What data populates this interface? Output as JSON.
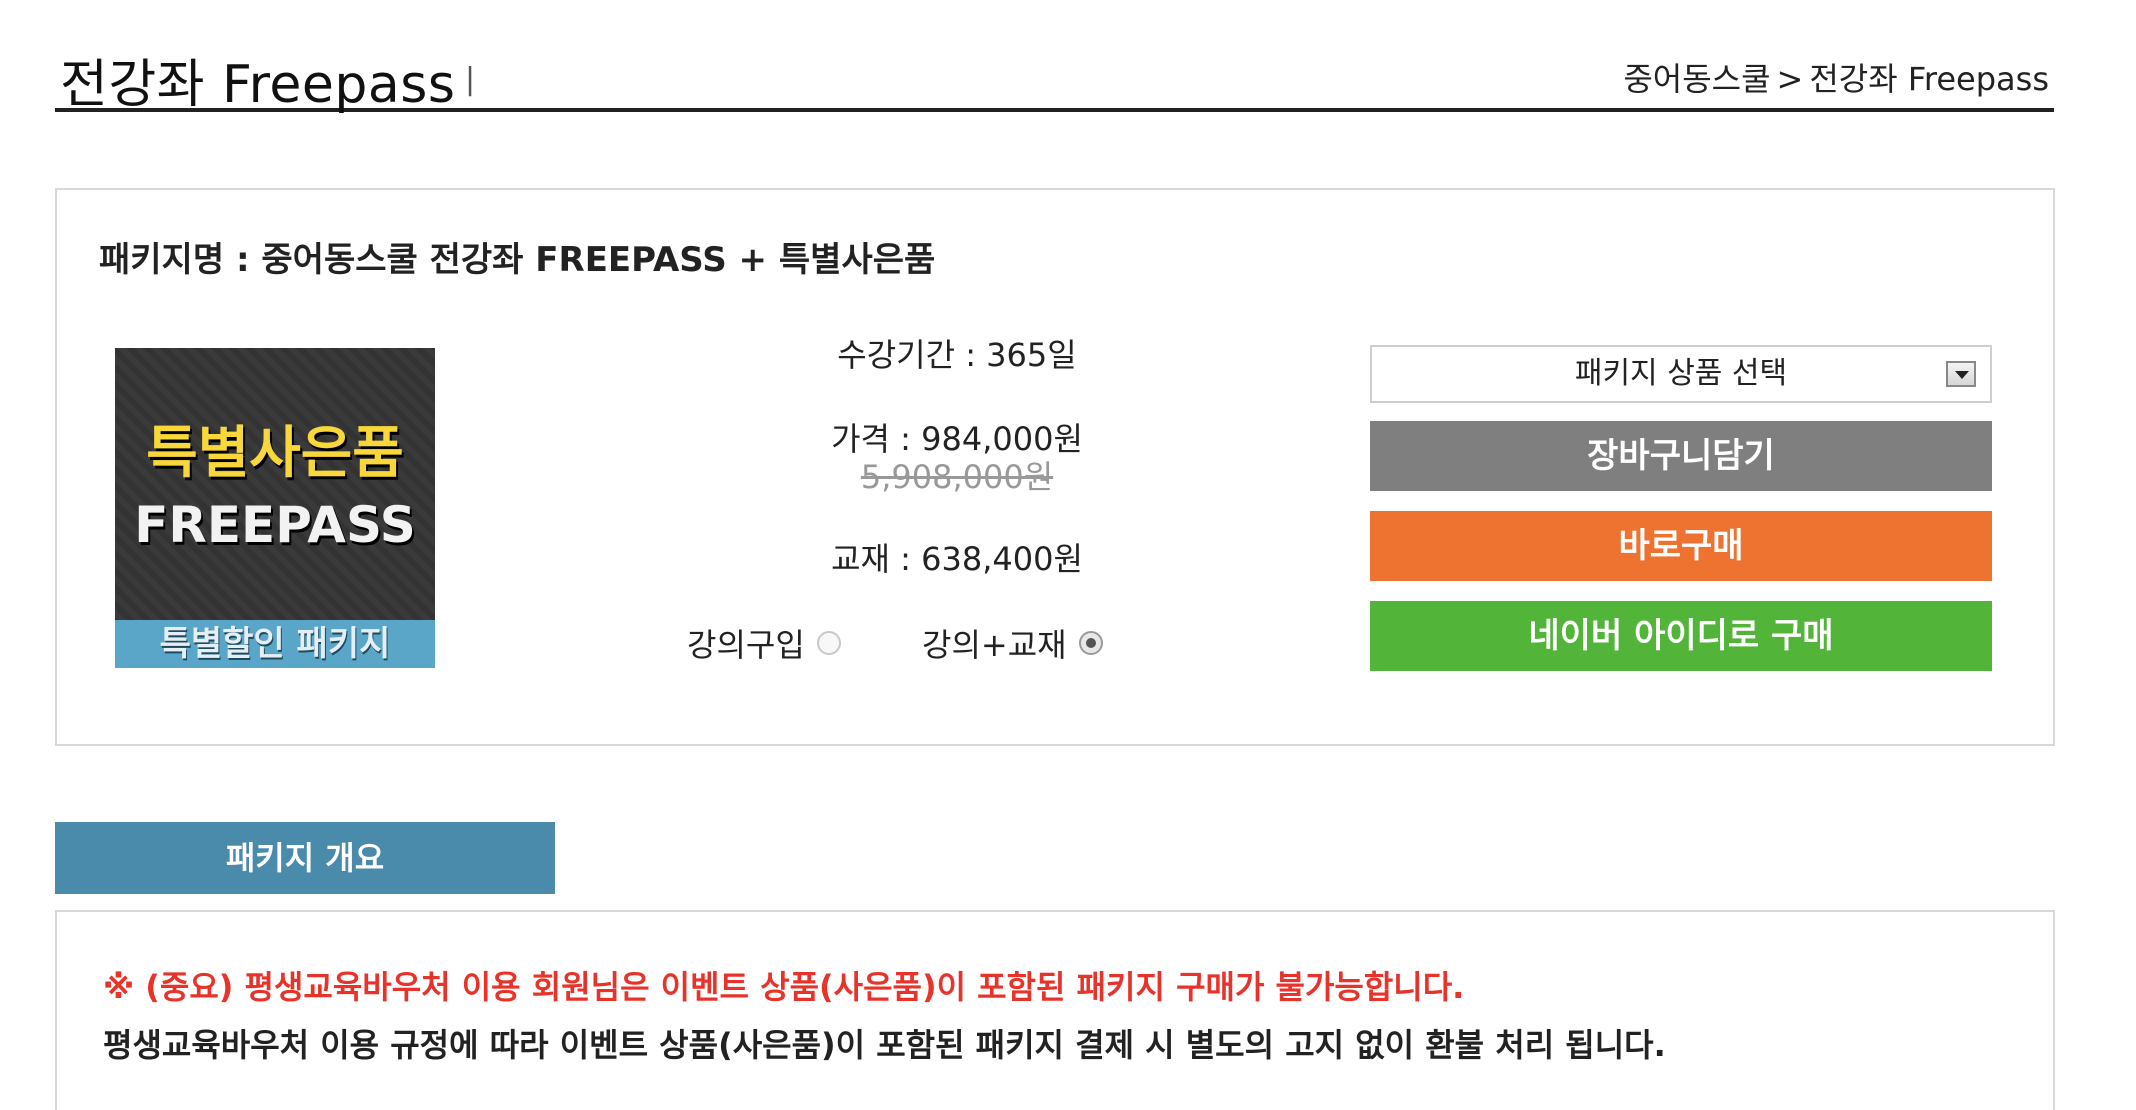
{
  "header": {
    "title": "전강좌 Freepass",
    "title_separator": "|",
    "breadcrumb": {
      "home": "중어동스쿨",
      "arrow": ">",
      "current": "전강좌 Freepass"
    }
  },
  "package": {
    "name": "패키지명 : 중어동스쿨 전강좌 FREEPASS + 특별사은품",
    "thumbnail": {
      "line1": "특별사은품",
      "line2": "FREEPASS",
      "banner": "특별할인 패키지"
    },
    "period": "수강기간 : 365일",
    "price": "가격 : 984,000원",
    "original_price": "5,908,000원",
    "textbook": "교재 : 638,400원",
    "options": [
      {
        "label": "강의구입",
        "checked": false
      },
      {
        "label": "강의+교재",
        "checked": true
      }
    ],
    "select": {
      "value": "패키지 상품 선택"
    },
    "buttons": {
      "cart": "장바구니담기",
      "buy_now": "바로구매",
      "naver": "네이버 아이디로 구매"
    },
    "colors": {
      "cart": "#7f7f7f",
      "buy_now": "#ef7330",
      "naver": "#52b53a",
      "tab": "#4a8aab",
      "notice_red": "#e8332a"
    }
  },
  "overview": {
    "tab_label": "패키지 개요",
    "notice_important": "※ (중요) 평생교육바우처 이용 회원님은 이벤트 상품(사은품)이 포함된 패키지 구매가 불가능합니다.",
    "notice_detail": "평생교육바우처 이용 규정에 따라 이벤트 상품(사은품)이 포함된 패키지 결제 시 별도의 고지 없이 환불 처리 됩니다."
  }
}
